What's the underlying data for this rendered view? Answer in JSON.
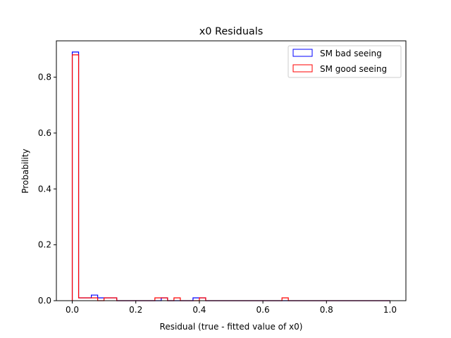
{
  "chart_data": {
    "type": "histogram",
    "title": "x0 Residuals",
    "xlabel": "Residual (true - fitted value of x0)",
    "ylabel": "Probability",
    "xlim": [
      -0.05,
      1.05
    ],
    "ylim": [
      0,
      0.93
    ],
    "xticks": [
      0.0,
      0.2,
      0.4,
      0.6,
      0.8,
      1.0
    ],
    "xtick_labels": [
      "0.0",
      "0.2",
      "0.4",
      "0.6",
      "0.8",
      "1.0"
    ],
    "yticks": [
      0.0,
      0.2,
      0.4,
      0.6,
      0.8
    ],
    "ytick_labels": [
      "0.0",
      "0.2",
      "0.4",
      "0.6",
      "0.8"
    ],
    "bin_edges": [
      0.0,
      0.02,
      0.04,
      0.06,
      0.08,
      0.1,
      0.12,
      0.14,
      0.16,
      0.18,
      0.2,
      0.22,
      0.24,
      0.26,
      0.28,
      0.3,
      0.32,
      0.34,
      0.36,
      0.38,
      0.4,
      0.42,
      0.44,
      0.46,
      0.48,
      0.5,
      0.52,
      0.54,
      0.56,
      0.58,
      0.6,
      0.62,
      0.64,
      0.66,
      0.68,
      0.7,
      0.72,
      0.74,
      0.76,
      0.78,
      0.8,
      0.82,
      0.84,
      0.86,
      0.88,
      0.9,
      0.92,
      0.94,
      0.96,
      0.98,
      1.0
    ],
    "series": [
      {
        "name": "SM bad seeing",
        "color": "#0000ff",
        "values": [
          0.89,
          0.01,
          0.01,
          0.02,
          0.01,
          0.01,
          0.01,
          0.0,
          0.0,
          0.0,
          0.0,
          0.0,
          0.0,
          0.0,
          0.01,
          0.0,
          0.0,
          0.0,
          0.0,
          0.01,
          0.01,
          0.0,
          0.0,
          0.0,
          0.0,
          0.0,
          0.0,
          0.0,
          0.0,
          0.0,
          0.0,
          0.0,
          0.0,
          0.0,
          0.0,
          0.0,
          0.0,
          0.0,
          0.0,
          0.0,
          0.0,
          0.0,
          0.0,
          0.0,
          0.0,
          0.0,
          0.0,
          0.0,
          0.0,
          0.0
        ]
      },
      {
        "name": "SM good seeing",
        "color": "#ff0000",
        "values": [
          0.88,
          0.01,
          0.01,
          0.01,
          0.0,
          0.01,
          0.01,
          0.0,
          0.0,
          0.0,
          0.0,
          0.0,
          0.0,
          0.01,
          0.01,
          0.0,
          0.01,
          0.0,
          0.0,
          0.0,
          0.01,
          0.0,
          0.0,
          0.0,
          0.0,
          0.0,
          0.0,
          0.0,
          0.0,
          0.0,
          0.0,
          0.0,
          0.0,
          0.01,
          0.0,
          0.0,
          0.0,
          0.0,
          0.0,
          0.0,
          0.0,
          0.0,
          0.0,
          0.0,
          0.0,
          0.0,
          0.0,
          0.0,
          0.0,
          0.0
        ]
      }
    ],
    "grid": false,
    "legend_position": "top-right"
  }
}
